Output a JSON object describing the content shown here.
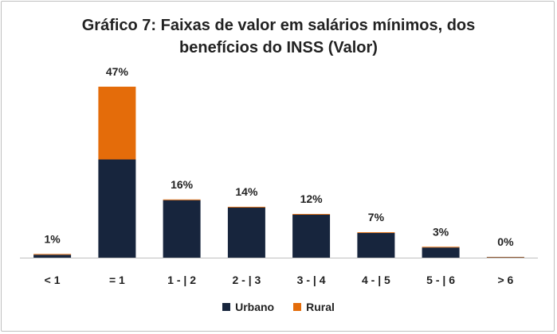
{
  "chart_data": {
    "type": "bar",
    "stacked": true,
    "title_lines": [
      "Gráfico 7: Faixas de valor em salários mínimos, dos",
      "benefícios do INSS (Valor)"
    ],
    "categories": [
      "< 1",
      "= 1",
      "1 - | 2",
      "2 - | 3",
      "3 - | 4",
      "4 - | 5",
      "5 - | 6",
      "> 6"
    ],
    "totals_labels": [
      "1%",
      "47%",
      "16%",
      "14%",
      "12%",
      "7%",
      "3%",
      "0%"
    ],
    "series": [
      {
        "name": "Urbano",
        "values": [
          0.8,
          27.0,
          15.8,
          13.8,
          11.8,
          6.8,
          2.8,
          0.1
        ]
      },
      {
        "name": "Rural",
        "values": [
          0.2,
          20.0,
          0.2,
          0.2,
          0.2,
          0.2,
          0.2,
          0.1
        ]
      }
    ],
    "ylim": [
      0,
      50
    ],
    "grid": false,
    "legend_position": "bottom",
    "colors": {
      "Urbano": "#17253d",
      "Rural": "#e46c0a",
      "axis": "#bfbfbf"
    }
  }
}
